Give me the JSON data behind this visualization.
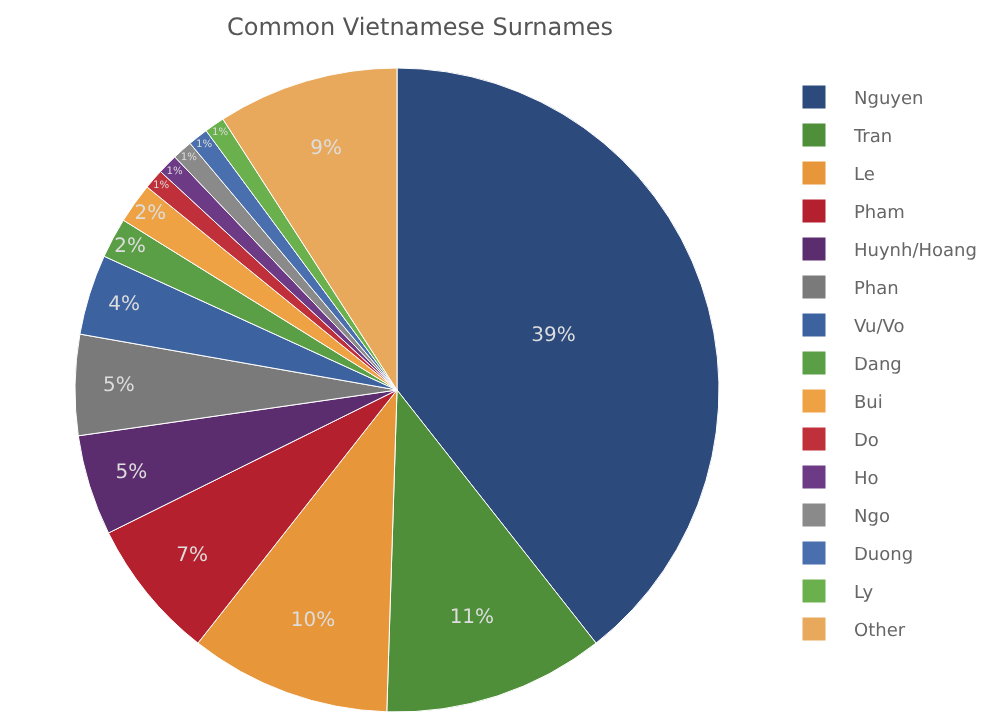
{
  "chart_data": {
    "type": "pie",
    "title": "Common Vietnamese Surnames",
    "categories": [
      "Nguyen",
      "Tran",
      "Le",
      "Pham",
      "Huynh/Hoang",
      "Phan",
      "Vu/Vo",
      "Dang",
      "Bui",
      "Do",
      "Ho",
      "Ngo",
      "Duong",
      "Ly",
      "Other"
    ],
    "values": [
      39,
      11,
      10,
      7,
      5,
      5,
      4,
      2,
      2,
      1,
      1,
      1,
      1,
      1,
      9
    ],
    "value_labels": [
      "39%",
      "11%",
      "10%",
      "7%",
      "5%",
      "5%",
      "4%",
      "2%",
      "2%",
      "1%",
      "1%",
      "1%",
      "1%",
      "1%",
      "9%"
    ],
    "colors": [
      "#2c4a7c",
      "#4f8f3a",
      "#e8963a",
      "#b5202e",
      "#5b2d6e",
      "#7a7a7a",
      "#3d62a0",
      "#5a9e45",
      "#eea243",
      "#c0303a",
      "#6d3a86",
      "#8a8a8a",
      "#4a6fae",
      "#6ab04c",
      "#e9a95c"
    ],
    "legend": "right"
  }
}
